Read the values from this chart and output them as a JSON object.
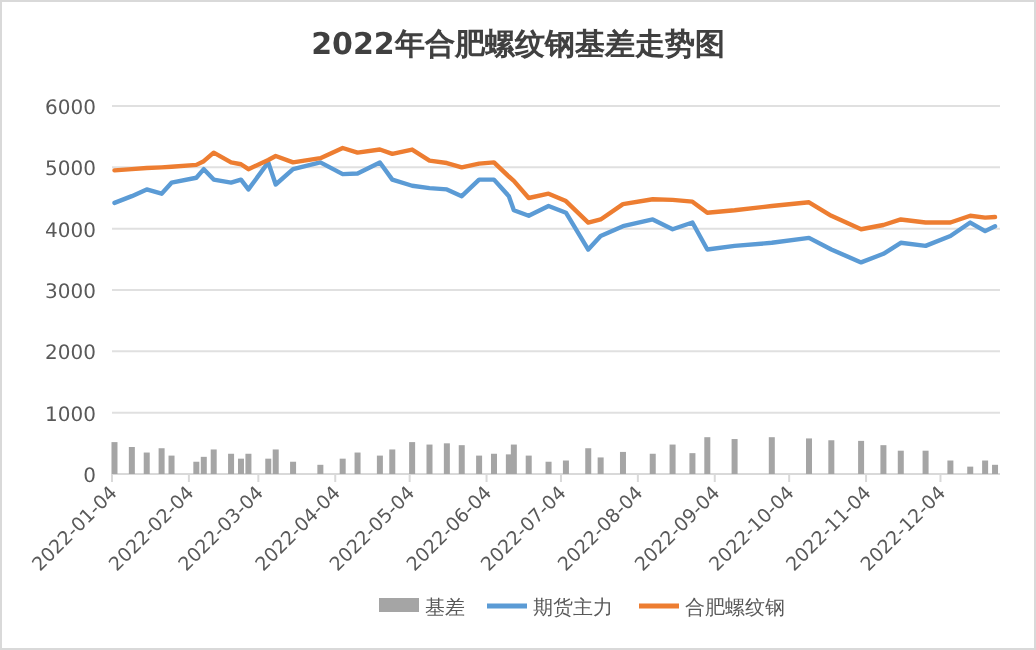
{
  "chart_data": {
    "type": "line",
    "title": "2022年合肥螺纹钢基差走势图",
    "x": [
      "2022-01-05",
      "2022-01-12",
      "2022-01-18",
      "2022-01-24",
      "2022-01-28",
      "2022-02-07",
      "2022-02-10",
      "2022-02-14",
      "2022-02-21",
      "2022-02-25",
      "2022-02-28",
      "2022-03-08",
      "2022-03-11",
      "2022-03-18",
      "2022-03-29",
      "2022-04-07",
      "2022-04-13",
      "2022-04-22",
      "2022-04-27",
      "2022-05-05",
      "2022-05-12",
      "2022-05-19",
      "2022-05-25",
      "2022-06-01",
      "2022-06-07",
      "2022-06-13",
      "2022-06-15",
      "2022-06-21",
      "2022-06-29",
      "2022-07-06",
      "2022-07-15",
      "2022-07-20",
      "2022-07-29",
      "2022-08-10",
      "2022-08-18",
      "2022-08-26",
      "2022-09-01",
      "2022-09-12",
      "2022-09-27",
      "2022-10-12",
      "2022-10-21",
      "2022-11-02",
      "2022-11-11",
      "2022-11-18",
      "2022-11-28",
      "2022-12-08",
      "2022-12-16",
      "2022-12-22",
      "2022-12-26"
    ],
    "series": [
      {
        "name": "基差",
        "type": "bar",
        "color": "#a5a5a5",
        "values": [
          520,
          440,
          350,
          420,
          300,
          200,
          280,
          400,
          330,
          250,
          330,
          250,
          400,
          200,
          150,
          250,
          350,
          300,
          400,
          520,
          480,
          500,
          470,
          300,
          330,
          320,
          480,
          300,
          200,
          220,
          420,
          270,
          360,
          330,
          480,
          340,
          600,
          570,
          600,
          580,
          550,
          540,
          470,
          380,
          380,
          220,
          120,
          220,
          150
        ]
      },
      {
        "name": "期货主力",
        "color": "#5b9bd5",
        "values": [
          4420,
          4530,
          4640,
          4570,
          4750,
          4830,
          4970,
          4800,
          4750,
          4800,
          4640,
          5080,
          4720,
          4970,
          5080,
          4890,
          4900,
          5080,
          4800,
          4700,
          4660,
          4640,
          4530,
          4800,
          4800,
          4530,
          4300,
          4210,
          4370,
          4260,
          3660,
          3880,
          4040,
          4150,
          3990,
          4100,
          3660,
          3720,
          3770,
          3850,
          3660,
          3450,
          3590,
          3770,
          3720,
          3880,
          4100,
          3960,
          4040
        ]
      },
      {
        "name": "合肥螺纹钢",
        "color": "#ed7d31",
        "values": [
          4950,
          4970,
          4990,
          5000,
          5010,
          5040,
          5100,
          5240,
          5080,
          5050,
          4970,
          5120,
          5185,
          5080,
          5150,
          5315,
          5240,
          5290,
          5220,
          5290,
          5110,
          5070,
          5000,
          5060,
          5080,
          4850,
          4780,
          4500,
          4570,
          4450,
          4100,
          4150,
          4400,
          4480,
          4470,
          4440,
          4260,
          4300,
          4370,
          4430,
          4210,
          3990,
          4060,
          4150,
          4100,
          4100,
          4210,
          4180,
          4190
        ]
      }
    ],
    "xlim": [
      "2022-01-04",
      "2022-12-28"
    ],
    "xticks": [
      "2022-01-04",
      "2022-02-04",
      "2022-03-04",
      "2022-04-04",
      "2022-05-04",
      "2022-06-04",
      "2022-07-04",
      "2022-08-04",
      "2022-09-04",
      "2022-10-04",
      "2022-11-04",
      "2022-12-04"
    ],
    "ylim": [
      0,
      6000
    ],
    "yticks": [
      0,
      1000,
      2000,
      3000,
      4000,
      5000,
      6000
    ],
    "grid": "y",
    "legend": "bottom"
  }
}
